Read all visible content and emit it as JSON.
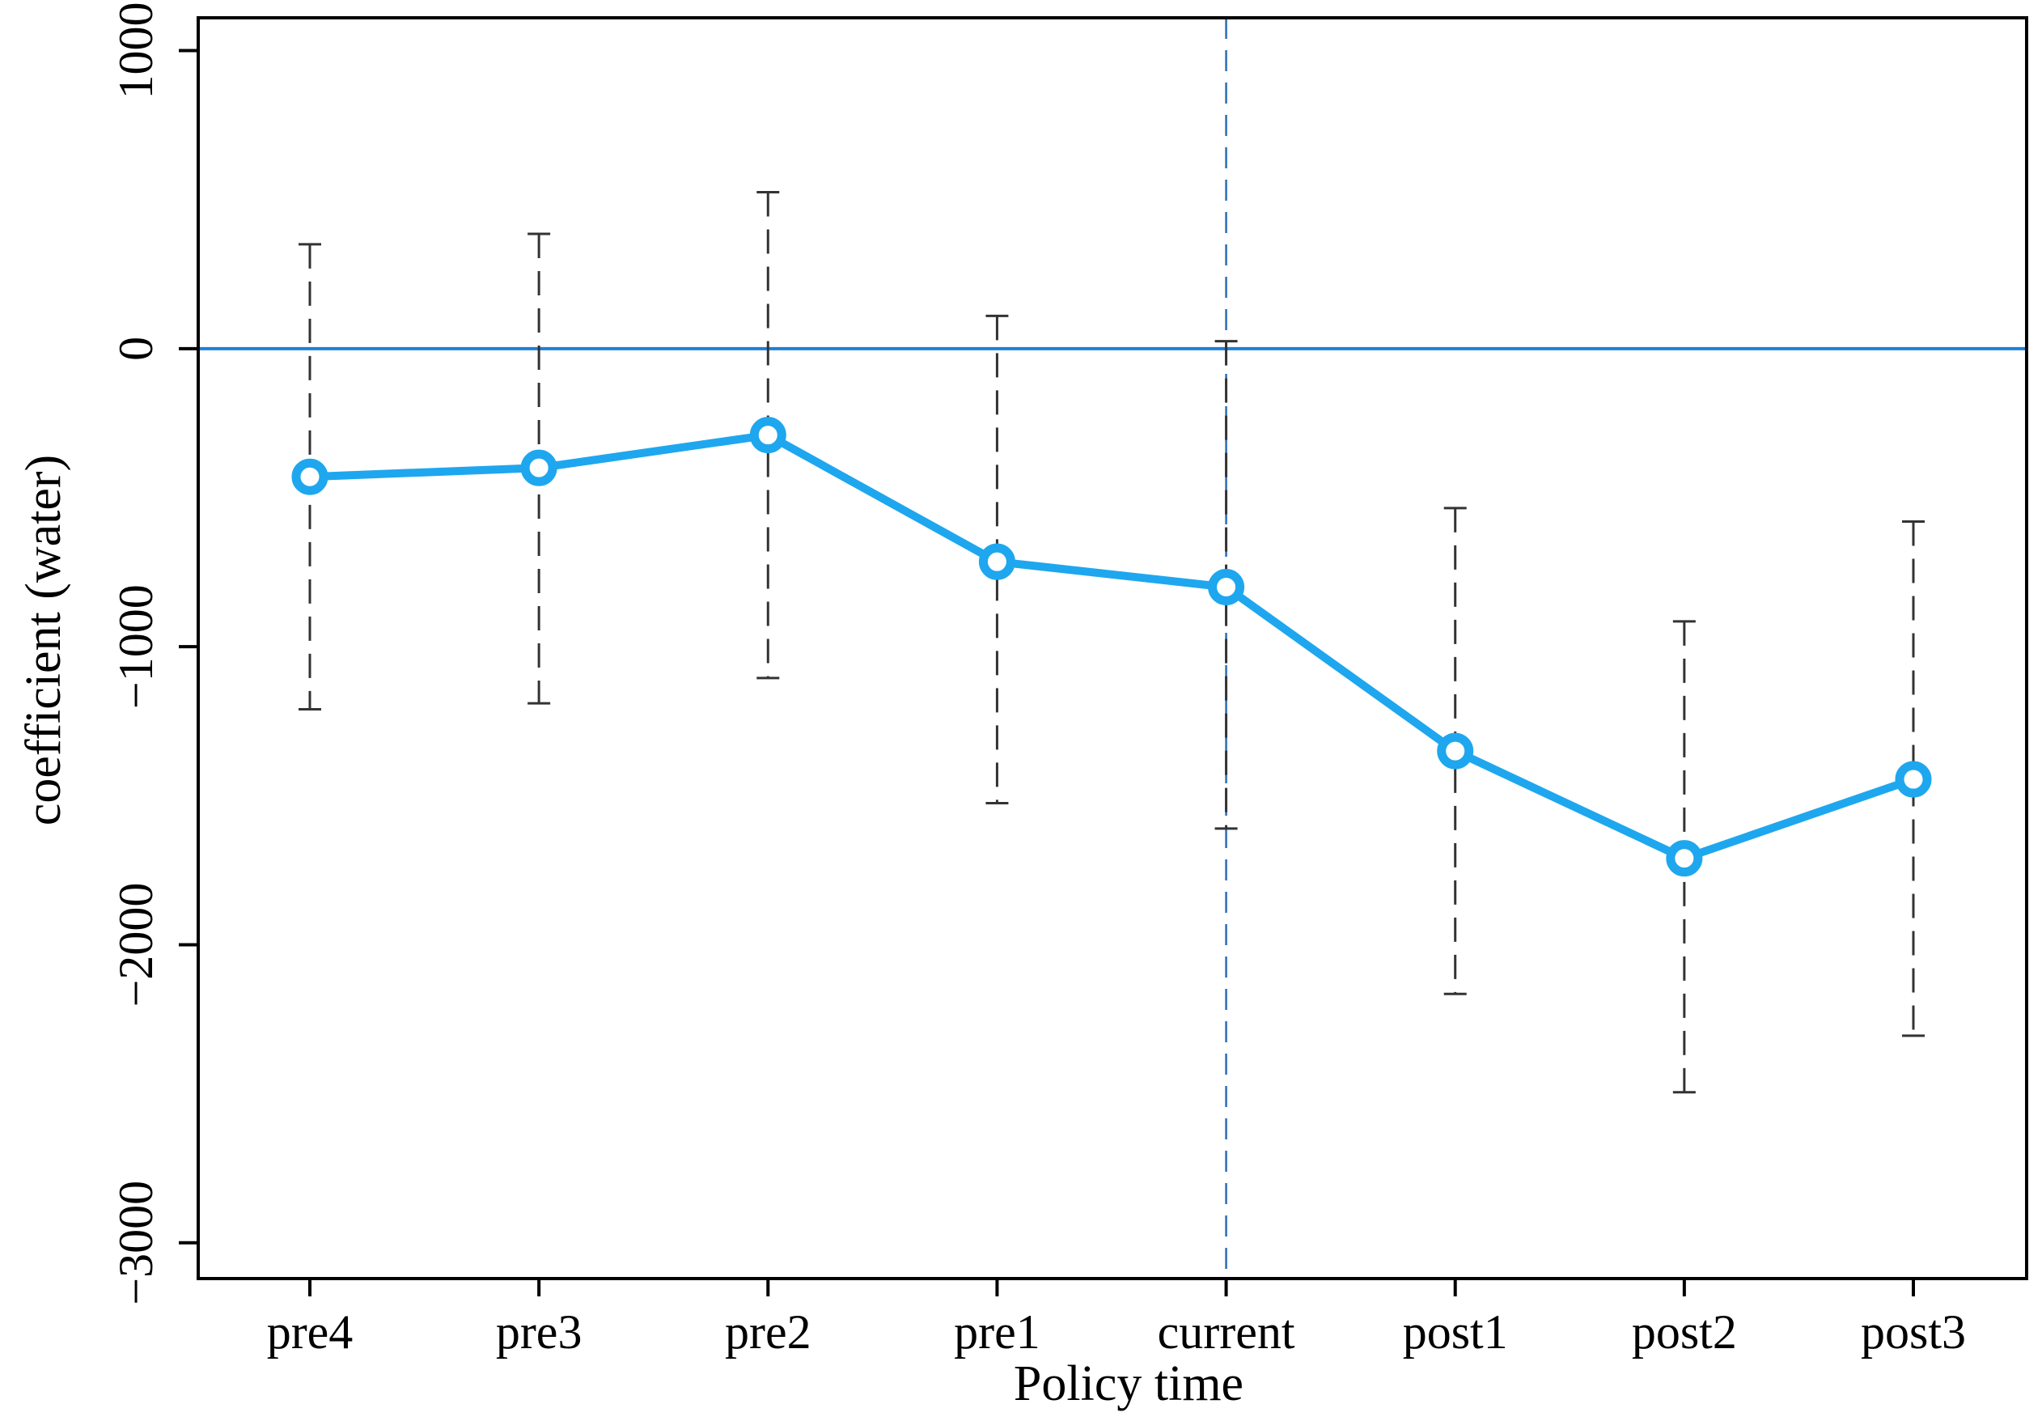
{
  "chart_data": {
    "type": "line",
    "title": "",
    "xlabel": "Policy time",
    "ylabel": "coefficient (water)",
    "categories": [
      "pre4",
      "pre3",
      "pre2",
      "pre1",
      "current",
      "post1",
      "post2",
      "post3"
    ],
    "series": [
      {
        "values": [
          -430,
          -400,
          -290,
          -715,
          -800,
          -1350,
          -1710,
          -1445
        ],
        "ci_lower": [
          -1210,
          -1190,
          -1105,
          -1525,
          -1610,
          -2165,
          -2495,
          -2305
        ],
        "ci_upper": [
          350,
          385,
          525,
          110,
          25,
          -535,
          -915,
          -580
        ],
        "color": "#1ea7ee"
      }
    ],
    "ylim": [
      -3120,
      1110
    ],
    "yticks": [
      1000,
      0,
      -1000,
      -2000,
      -3000
    ],
    "ytick_labels": [
      "1000",
      "0",
      "−1000",
      "−2000",
      "−3000"
    ],
    "reference_lines": {
      "horizontal_y": 0,
      "vertical_category": "current",
      "horizontal_color": "#1f7fd6",
      "vertical_color": "#2a6db5"
    },
    "errorbar_style": "dashed",
    "errorbar_color": "#333333",
    "grid": false,
    "legend": "none"
  }
}
